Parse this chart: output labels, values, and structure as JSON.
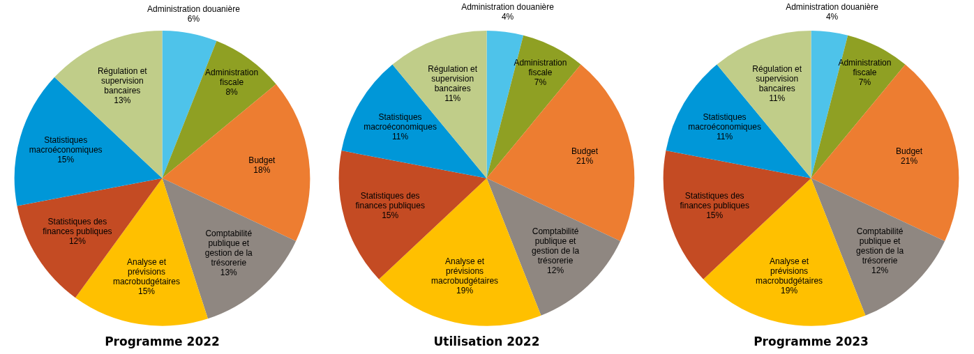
{
  "chart_data": [
    {
      "type": "pie",
      "title": "Programme 2022",
      "categories": [
        "Administration douanière",
        "Administration fiscale",
        "Budget",
        "Comptabilité publique et gestion de la trésorerie",
        "Analyse et prévisions macrobudgétaires",
        "Statistiques des finances publiques",
        "Statistiques macroéconomiques",
        "Régulation et supervision bancaires"
      ],
      "values": [
        6,
        8,
        18,
        13,
        15,
        12,
        15,
        13
      ],
      "value_labels": [
        "6%",
        "8%",
        "18%",
        "13%",
        "15%",
        "12%",
        "15%",
        "13%"
      ],
      "colors": [
        "#4ec3ea",
        "#8fa023",
        "#ed7d31",
        "#8f8781",
        "#ffc000",
        "#c44b23",
        "#0097d8",
        "#c0cd89"
      ],
      "legend": false
    },
    {
      "type": "pie",
      "title": "Utilisation 2022",
      "categories": [
        "Administration douanière",
        "Administration fiscale",
        "Budget",
        "Comptabilité publique et gestion de la trésorerie",
        "Analyse et prévisions macrobudgétaires",
        "Statistiques des finances publiques",
        "Statistiques macroéconomiques",
        "Régulation et supervision bancaires"
      ],
      "values": [
        4,
        7,
        21,
        12,
        19,
        15,
        11,
        11
      ],
      "value_labels": [
        "4%",
        "7%",
        "21%",
        "12%",
        "19%",
        "15%",
        "11%",
        "11%"
      ],
      "colors": [
        "#4ec3ea",
        "#8fa023",
        "#ed7d31",
        "#8f8781",
        "#ffc000",
        "#c44b23",
        "#0097d8",
        "#c0cd89"
      ],
      "legend": false
    },
    {
      "type": "pie",
      "title": "Programme 2023",
      "categories": [
        "Administration douanière",
        "Administration fiscale",
        "Budget",
        "Comptabilité publique et gestion de la trésorerie",
        "Analyse et prévisions macrobudgétaires",
        "Statistiques des finances publiques",
        "Statistiques macroéconomiques",
        "Régulation et supervision bancaires"
      ],
      "values": [
        4,
        7,
        21,
        12,
        19,
        15,
        11,
        11
      ],
      "value_labels": [
        "4%",
        "7%",
        "21%",
        "12%",
        "19%",
        "15%",
        "11%",
        "11%"
      ],
      "colors": [
        "#4ec3ea",
        "#8fa023",
        "#ed7d31",
        "#8f8781",
        "#ffc000",
        "#c44b23",
        "#0097d8",
        "#c0cd89"
      ],
      "legend": false
    }
  ]
}
